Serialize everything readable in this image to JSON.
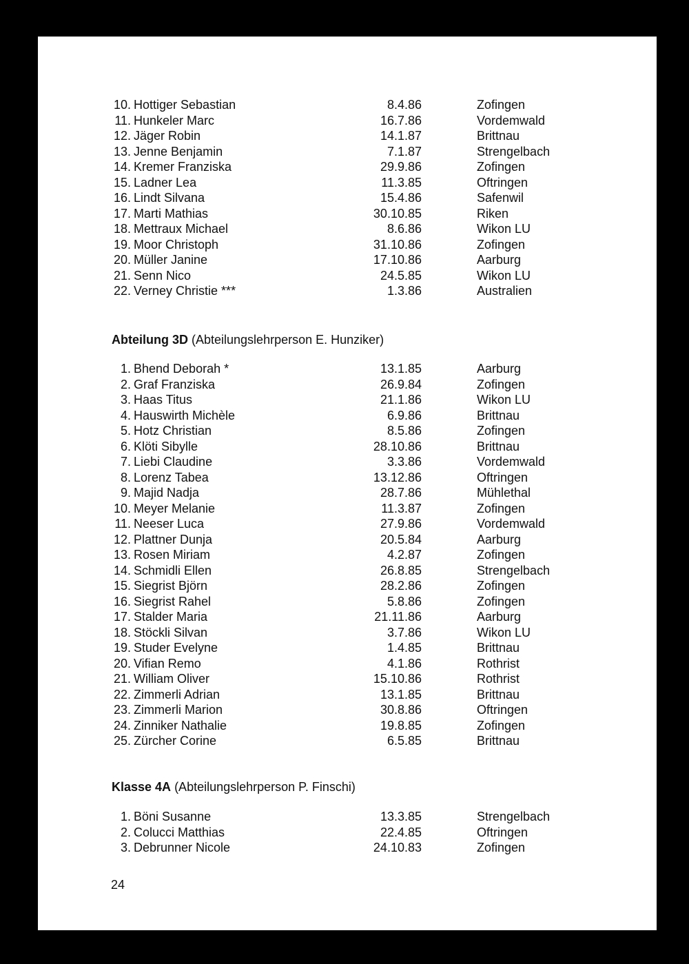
{
  "sections": [
    {
      "heading_bold": "",
      "heading_rest": "",
      "rows": [
        {
          "num": "10.",
          "name": "Hottiger Sebastian",
          "date": "8.4.86",
          "place": "Zofingen"
        },
        {
          "num": "11.",
          "name": "Hunkeler Marc",
          "date": "16.7.86",
          "place": "Vordemwald"
        },
        {
          "num": "12.",
          "name": "Jäger Robin",
          "date": "14.1.87",
          "place": "Brittnau"
        },
        {
          "num": "13.",
          "name": "Jenne Benjamin",
          "date": "7.1.87",
          "place": "Strengelbach"
        },
        {
          "num": "14.",
          "name": "Kremer Franziska",
          "date": "29.9.86",
          "place": "Zofingen"
        },
        {
          "num": "15.",
          "name": "Ladner Lea",
          "date": "11.3.85",
          "place": "Oftringen"
        },
        {
          "num": "16.",
          "name": "Lindt Silvana",
          "date": "15.4.86",
          "place": "Safenwil"
        },
        {
          "num": "17.",
          "name": "Marti Mathias",
          "date": "30.10.85",
          "place": "Riken"
        },
        {
          "num": "18.",
          "name": "Mettraux Michael",
          "date": "8.6.86",
          "place": "Wikon LU"
        },
        {
          "num": "19.",
          "name": "Moor Christoph",
          "date": "31.10.86",
          "place": "Zofingen"
        },
        {
          "num": "20.",
          "name": "Müller Janine",
          "date": "17.10.86",
          "place": "Aarburg"
        },
        {
          "num": "21.",
          "name": "Senn Nico",
          "date": "24.5.85",
          "place": "Wikon LU"
        },
        {
          "num": "22.",
          "name": "Verney Christie ***",
          "date": "1.3.86",
          "place": "Australien"
        }
      ]
    },
    {
      "heading_bold": "Abteilung 3D",
      "heading_rest": " (Abteilungslehrperson E. Hunziker)",
      "rows": [
        {
          "num": "1.",
          "name": "Bhend Deborah *",
          "date": "13.1.85",
          "place": "Aarburg"
        },
        {
          "num": "2.",
          "name": "Graf Franziska",
          "date": "26.9.84",
          "place": "Zofingen"
        },
        {
          "num": "3.",
          "name": "Haas Titus",
          "date": "21.1.86",
          "place": "Wikon LU"
        },
        {
          "num": "4.",
          "name": "Hauswirth Michèle",
          "date": "6.9.86",
          "place": "Brittnau"
        },
        {
          "num": "5.",
          "name": "Hotz Christian",
          "date": "8.5.86",
          "place": "Zofingen"
        },
        {
          "num": "6.",
          "name": "Klöti Sibylle",
          "date": "28.10.86",
          "place": "Brittnau"
        },
        {
          "num": "7.",
          "name": "Liebi Claudine",
          "date": "3.3.86",
          "place": "Vordemwald"
        },
        {
          "num": "8.",
          "name": "Lorenz Tabea",
          "date": "13.12.86",
          "place": "Oftringen"
        },
        {
          "num": "9.",
          "name": "Majid Nadja",
          "date": "28.7.86",
          "place": "Mühlethal"
        },
        {
          "num": "10.",
          "name": "Meyer Melanie",
          "date": "11.3.87",
          "place": "Zofingen"
        },
        {
          "num": "11.",
          "name": "Neeser Luca",
          "date": "27.9.86",
          "place": "Vordemwald"
        },
        {
          "num": "12.",
          "name": "Plattner Dunja",
          "date": "20.5.84",
          "place": "Aarburg"
        },
        {
          "num": "13.",
          "name": "Rosen Miriam",
          "date": "4.2.87",
          "place": "Zofingen"
        },
        {
          "num": "14.",
          "name": "Schmidli Ellen",
          "date": "26.8.85",
          "place": "Strengelbach"
        },
        {
          "num": "15.",
          "name": "Siegrist Björn",
          "date": "28.2.86",
          "place": "Zofingen"
        },
        {
          "num": "16.",
          "name": "Siegrist Rahel",
          "date": "5.8.86",
          "place": "Zofingen"
        },
        {
          "num": "17.",
          "name": "Stalder Maria",
          "date": "21.11.86",
          "place": "Aarburg"
        },
        {
          "num": "18.",
          "name": "Stöckli Silvan",
          "date": "3.7.86",
          "place": "Wikon LU"
        },
        {
          "num": "19.",
          "name": "Studer Evelyne",
          "date": "1.4.85",
          "place": "Brittnau"
        },
        {
          "num": "20.",
          "name": "Vifian Remo",
          "date": "4.1.86",
          "place": "Rothrist"
        },
        {
          "num": "21.",
          "name": "William Oliver",
          "date": "15.10.86",
          "place": "Rothrist"
        },
        {
          "num": "22.",
          "name": "Zimmerli Adrian",
          "date": "13.1.85",
          "place": "Brittnau"
        },
        {
          "num": "23.",
          "name": "Zimmerli Marion",
          "date": "30.8.86",
          "place": "Oftringen"
        },
        {
          "num": "24.",
          "name": "Zinniker Nathalie",
          "date": "19.8.85",
          "place": "Zofingen"
        },
        {
          "num": "25.",
          "name": "Zürcher Corine",
          "date": "6.5.85",
          "place": "Brittnau"
        }
      ]
    },
    {
      "heading_bold": "Klasse 4A",
      "heading_rest": " (Abteilungslehrperson P. Finschi)",
      "rows": [
        {
          "num": "1.",
          "name": "Böni Susanne",
          "date": "13.3.85",
          "place": "Strengelbach"
        },
        {
          "num": "2.",
          "name": "Colucci Matthias",
          "date": "22.4.85",
          "place": "Oftringen"
        },
        {
          "num": "3.",
          "name": "Debrunner Nicole",
          "date": "24.10.83",
          "place": "Zofingen"
        }
      ]
    }
  ],
  "page_number": "24"
}
